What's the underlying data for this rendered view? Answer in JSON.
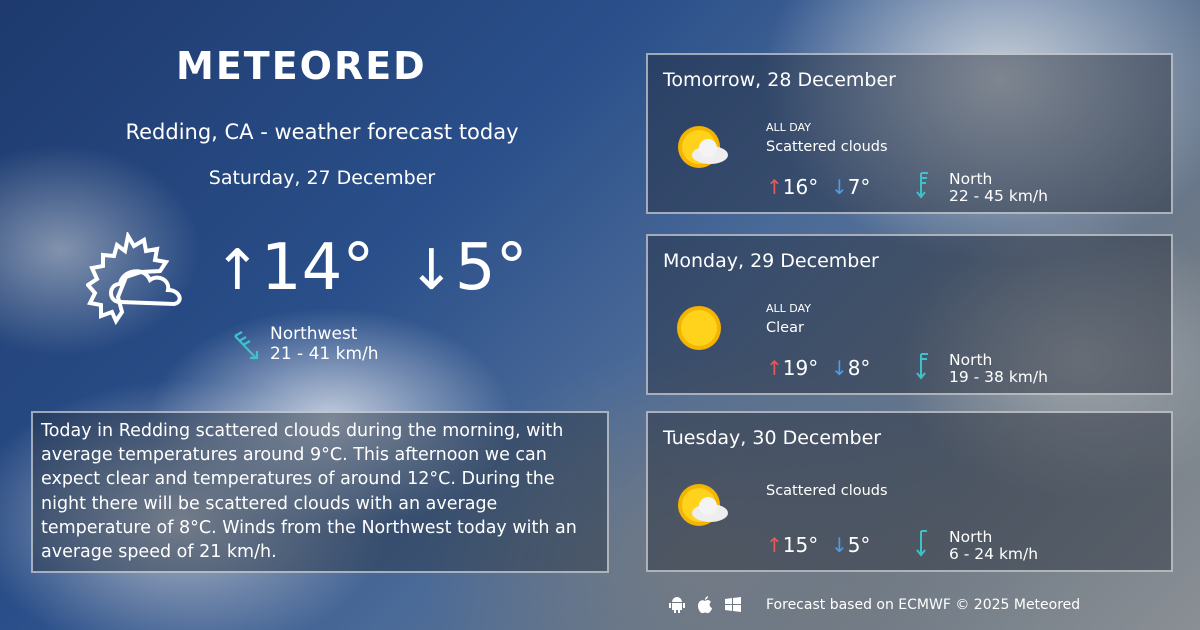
{
  "brand": {
    "logo": "METEORED"
  },
  "today": {
    "title": "Redding, CA - weather forecast today",
    "date": "Saturday, 27 December",
    "icon": "sun-cloud-outline-icon",
    "max": "14°",
    "min": "5°",
    "wind_dir": "Northwest",
    "wind_speed": "21 - 41 km/h",
    "description": "Today in Redding scattered clouds during the morning, with average temperatures around 9°C. This afternoon we can expect clear and temperatures of around 12°C. During the night there will be scattered clouds with an average temperature of 8°C. Winds from the Northwest today with an average speed of 21 km/h."
  },
  "forecast": [
    {
      "day": "Tomorrow, 28 December",
      "period": "ALL DAY",
      "condition": "Scattered clouds",
      "icon": "sun-cloud-icon",
      "max": "16°",
      "min": "7°",
      "wind_dir": "North",
      "wind_speed": "22 - 45 km/h"
    },
    {
      "day": "Monday, 29 December",
      "period": "ALL DAY",
      "condition": "Clear",
      "icon": "sun-icon",
      "max": "19°",
      "min": "8°",
      "wind_dir": "North",
      "wind_speed": "19 - 38 km/h"
    },
    {
      "day": "Tuesday, 30 December",
      "condition": "Scattered clouds",
      "icon": "sun-cloud-icon",
      "max": "15°",
      "min": "5°",
      "wind_dir": "North",
      "wind_speed": "6 - 24 km/h"
    }
  ],
  "footer": {
    "text": "Forecast based on ECMWF © 2025 Meteored",
    "icons": [
      "android-icon",
      "apple-icon",
      "windows-icon"
    ]
  },
  "colors": {
    "up": "#e85a5a",
    "down": "#4f9be8",
    "wind": "#3fc1c9"
  }
}
